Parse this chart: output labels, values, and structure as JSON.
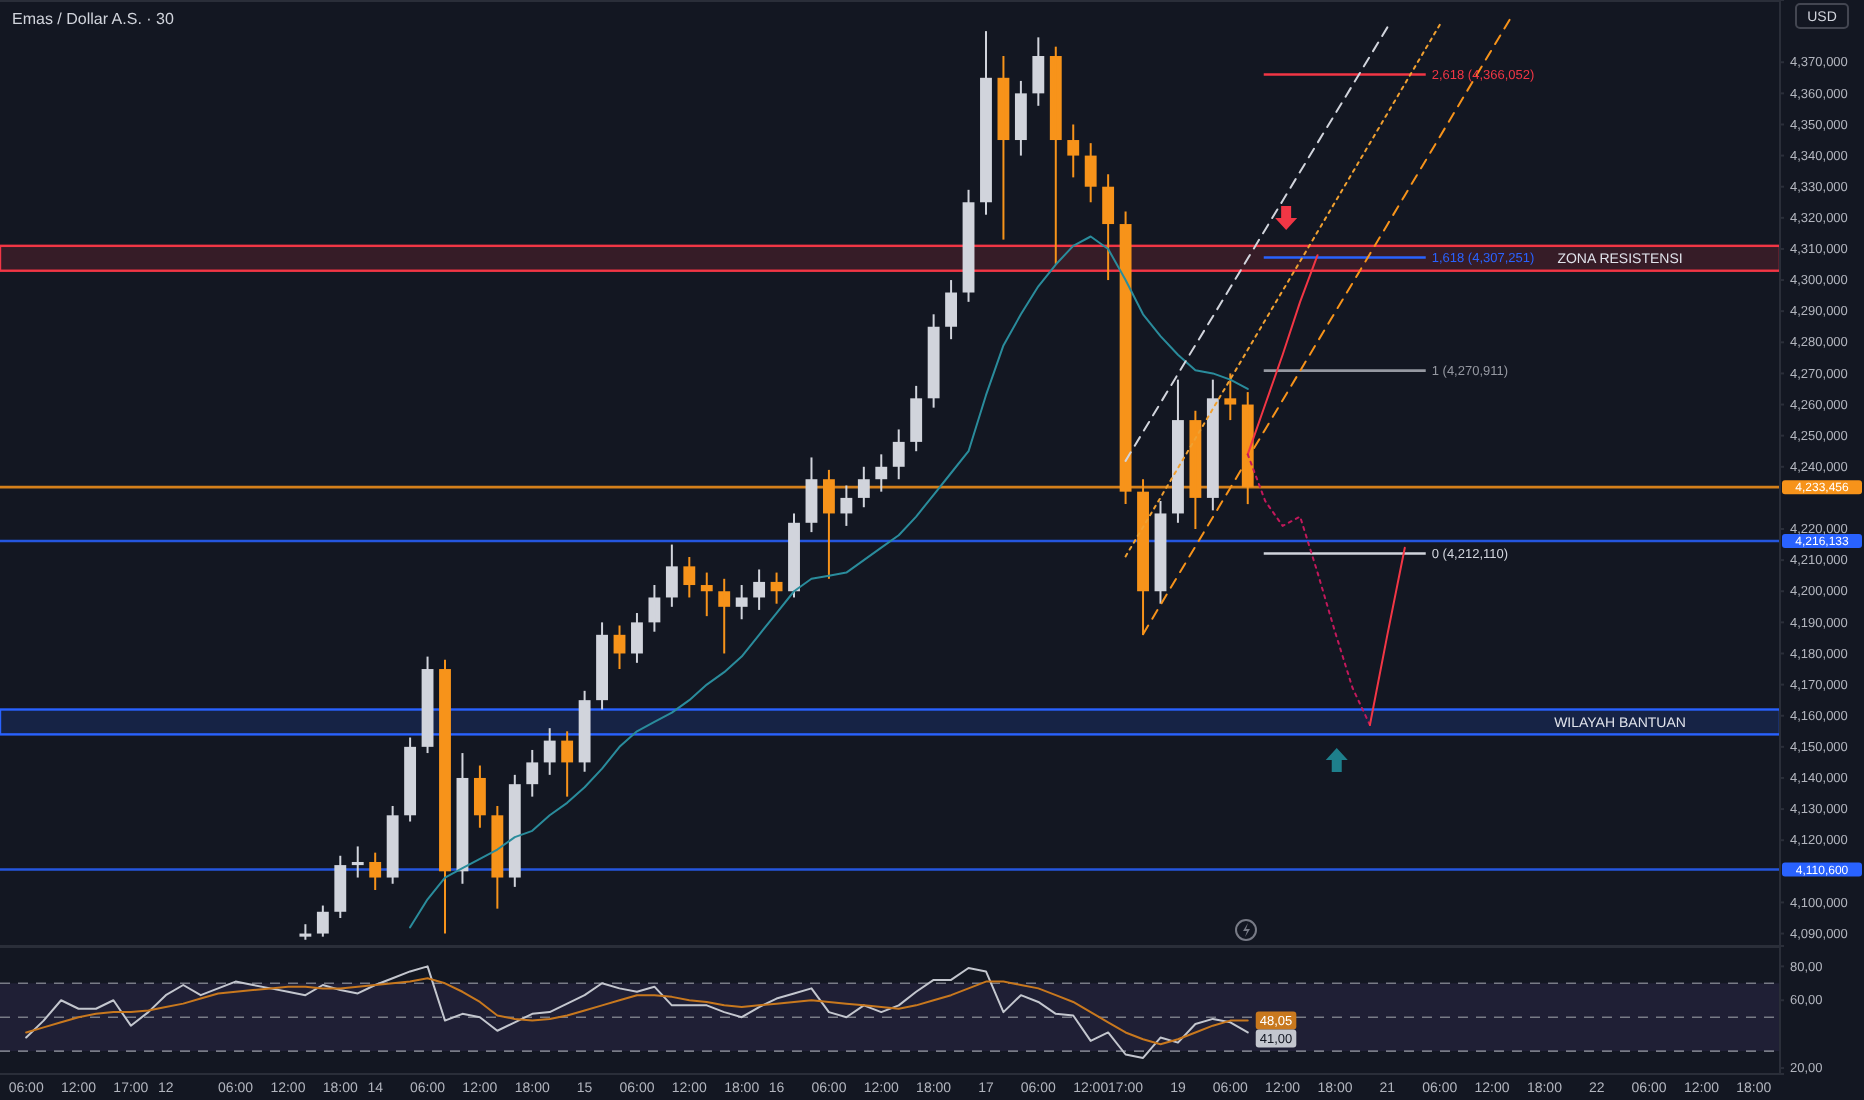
{
  "chart_data": [
    {
      "type": "candlestick",
      "title": "Emas / Dollar A.S. · 30",
      "ylabel": "USD",
      "ylim": [
        4086000,
        4390000
      ],
      "categories": [
        null,
        null,
        null,
        null,
        null,
        null,
        null,
        null,
        null,
        null,
        null,
        null,
        null,
        null,
        null,
        null,
        null,
        null,
        null,
        null,
        null,
        null,
        null,
        null,
        null,
        null,
        null,
        null,
        null,
        null,
        null,
        null,
        null,
        null,
        null,
        null,
        null,
        null,
        null,
        null,
        null,
        null,
        null,
        null,
        null,
        null,
        null,
        null,
        null,
        null,
        null,
        null,
        null,
        null,
        null,
        null,
        null,
        null,
        null,
        null,
        null,
        null,
        null,
        null,
        null,
        null,
        null,
        null,
        null,
        null,
        null,
        null,
        null,
        null,
        null,
        null,
        null,
        null,
        null,
        null,
        null,
        null,
        null,
        null,
        null,
        null,
        null,
        null,
        null,
        null,
        null,
        null,
        null,
        null,
        null,
        null,
        null,
        null,
        null,
        null,
        null,
        null
      ],
      "yticks": [
        {
          "value": 4090000,
          "label": "4,090,000"
        },
        {
          "value": 4100000,
          "label": "4,100,000"
        },
        {
          "value": 4120000,
          "label": "4,120,000"
        },
        {
          "value": 4130000,
          "label": "4,130,000"
        },
        {
          "value": 4140000,
          "label": "4,140,000"
        },
        {
          "value": 4150000,
          "label": "4,150,000"
        },
        {
          "value": 4160000,
          "label": "4,160,000"
        },
        {
          "value": 4170000,
          "label": "4,170,000"
        },
        {
          "value": 4180000,
          "label": "4,180,000"
        },
        {
          "value": 4190000,
          "label": "4,190,000"
        },
        {
          "value": 4200000,
          "label": "4,200,000"
        },
        {
          "value": 4210000,
          "label": "4,210,000"
        },
        {
          "value": 4220000,
          "label": "4,220,000"
        },
        {
          "value": 4240000,
          "label": "4,240,000"
        },
        {
          "value": 4250000,
          "label": "4,250,000"
        },
        {
          "value": 4260000,
          "label": "4,260,000"
        },
        {
          "value": 4270000,
          "label": "4,270,000"
        },
        {
          "value": 4280000,
          "label": "4,280,000"
        },
        {
          "value": 4290000,
          "label": "4,290,000"
        },
        {
          "value": 4300000,
          "label": "4,300,000"
        },
        {
          "value": 4310000,
          "label": "4,310,000"
        },
        {
          "value": 4320000,
          "label": "4,320,000"
        },
        {
          "value": 4330000,
          "label": "4,330,000"
        },
        {
          "value": 4340000,
          "label": "4,340,000"
        },
        {
          "value": 4350000,
          "label": "4,350,000"
        },
        {
          "value": 4360000,
          "label": "4,360,000"
        },
        {
          "value": 4370000,
          "label": "4,370,000"
        }
      ],
      "ohlc": [
        null,
        null,
        null,
        null,
        null,
        null,
        null,
        null,
        null,
        null,
        null,
        null,
        null,
        null,
        null,
        null,
        null,
        [
          4089000,
          4093000,
          4088000,
          4090000
        ],
        [
          4090000,
          4099000,
          4089000,
          4097000
        ],
        [
          4097000,
          4115000,
          4095000,
          4112000
        ],
        [
          4112000,
          4118000,
          4108000,
          4113000
        ],
        [
          4113000,
          4116000,
          4104000,
          4108000
        ],
        [
          4108000,
          4131000,
          4106000,
          4128000
        ],
        [
          4128000,
          4153000,
          4126000,
          4150000
        ],
        [
          4150000,
          4179000,
          4148000,
          4175000
        ],
        [
          4175000,
          4178000,
          4090000,
          4110000
        ],
        [
          4110000,
          4148000,
          4106000,
          4140000
        ],
        [
          4140000,
          4144000,
          4124000,
          4128000
        ],
        [
          4128000,
          4131000,
          4098000,
          4108000
        ],
        [
          4108000,
          4141000,
          4105000,
          4138000
        ],
        [
          4138000,
          4149000,
          4134000,
          4145000
        ],
        [
          4145000,
          4156000,
          4141000,
          4152000
        ],
        [
          4152000,
          4155000,
          4134000,
          4145000
        ],
        [
          4145000,
          4168000,
          4142000,
          4165000
        ],
        [
          4165000,
          4190000,
          4162000,
          4186000
        ],
        [
          4186000,
          4189000,
          4175000,
          4180000
        ],
        [
          4180000,
          4193000,
          4177000,
          4190000
        ],
        [
          4190000,
          4202000,
          4187000,
          4198000
        ],
        [
          4198000,
          4215000,
          4195000,
          4208000
        ],
        [
          4208000,
          4211000,
          4198000,
          4202000
        ],
        [
          4202000,
          4206000,
          4192000,
          4200000
        ],
        [
          4200000,
          4204000,
          4180000,
          4195000
        ],
        [
          4195000,
          4202000,
          4191000,
          4198000
        ],
        [
          4198000,
          4207000,
          4194000,
          4203000
        ],
        [
          4203000,
          4206000,
          4196000,
          4200000
        ],
        [
          4200000,
          4225000,
          4198000,
          4222000
        ],
        [
          4222000,
          4243000,
          4219000,
          4236000
        ],
        [
          4236000,
          4239000,
          4204000,
          4225000
        ],
        [
          4225000,
          4234000,
          4221000,
          4230000
        ],
        [
          4230000,
          4240000,
          4227000,
          4236000
        ],
        [
          4236000,
          4244000,
          4232000,
          4240000
        ],
        [
          4240000,
          4252000,
          4236000,
          4248000
        ],
        [
          4248000,
          4266000,
          4245000,
          4262000
        ],
        [
          4262000,
          4289000,
          4259000,
          4285000
        ],
        [
          4285000,
          4300000,
          4281000,
          4296000
        ],
        [
          4296000,
          4329000,
          4293000,
          4325000
        ],
        [
          4325000,
          4380000,
          4321000,
          4365000
        ],
        [
          4365000,
          4372000,
          4313000,
          4345000
        ],
        [
          4345000,
          4364000,
          4340000,
          4360000
        ],
        [
          4360000,
          4378000,
          4356000,
          4372000
        ],
        [
          4372000,
          4375000,
          4305000,
          4345000
        ],
        [
          4345000,
          4350000,
          4333000,
          4340000
        ],
        [
          4340000,
          4344000,
          4325000,
          4330000
        ],
        [
          4330000,
          4334000,
          4300000,
          4318000
        ],
        [
          4318000,
          4322000,
          4228000,
          4232000
        ],
        [
          4232000,
          4236000,
          4186000,
          4200000
        ],
        [
          4200000,
          4229000,
          4196000,
          4225000
        ],
        [
          4225000,
          4268000,
          4222000,
          4255000
        ],
        [
          4255000,
          4258000,
          4220000,
          4230000
        ],
        [
          4230000,
          4268000,
          4226000,
          4262000
        ],
        [
          4262000,
          4270000,
          4255000,
          4260000
        ],
        [
          4260000,
          4264000,
          4228000,
          4233456
        ],
        null,
        null,
        null,
        null,
        null,
        null,
        null,
        null,
        null,
        null,
        null,
        null,
        null,
        null,
        null,
        null,
        null,
        null,
        null,
        null,
        null,
        null,
        null,
        null,
        null,
        null,
        null,
        null,
        null,
        null
      ],
      "colors": [
        null,
        null,
        null,
        null,
        null,
        null,
        null,
        null,
        null,
        null,
        null,
        null,
        null,
        null,
        null,
        null,
        null,
        "#d1d4dc",
        "#d1d4dc",
        "#d1d4dc",
        "#d1d4dc",
        "#f7931a",
        "#d1d4dc",
        "#d1d4dc",
        "#d1d4dc",
        "#f7931a",
        "#d1d4dc",
        "#f7931a",
        "#f7931a",
        "#d1d4dc",
        "#d1d4dc",
        "#d1d4dc",
        "#f7931a",
        "#d1d4dc",
        "#d1d4dc",
        "#f7931a",
        "#d1d4dc",
        "#d1d4dc",
        "#d1d4dc",
        "#f7931a",
        "#f7931a",
        "#f7931a",
        "#d1d4dc",
        "#d1d4dc",
        "#f7931a",
        "#d1d4dc",
        "#d1d4dc",
        "#f7931a",
        "#d1d4dc",
        "#d1d4dc",
        "#d1d4dc",
        "#d1d4dc",
        "#d1d4dc",
        "#d1d4dc",
        "#d1d4dc",
        "#d1d4dc",
        "#d1d4dc",
        "#f7931a",
        "#d1d4dc",
        "#d1d4dc",
        "#f7931a",
        "#f7931a",
        "#f7931a",
        "#f7931a",
        "#f7931a",
        "#f7931a",
        "#d1d4dc",
        "#d1d4dc",
        "#f7931a",
        "#d1d4dc",
        "#f7931a",
        "#f7931a",
        null,
        null,
        null,
        null,
        null,
        null,
        null,
        null,
        null,
        null,
        null,
        null,
        null,
        null,
        null,
        null,
        null,
        null,
        null,
        null,
        null,
        null,
        null,
        null,
        null,
        null,
        null,
        null,
        null,
        null
      ],
      "series": [
        {
          "type": "line",
          "color": "#2a8c9c",
          "values": [
            null,
            null,
            null,
            null,
            null,
            null,
            null,
            null,
            null,
            null,
            null,
            null,
            null,
            null,
            null,
            null,
            null,
            null,
            null,
            null,
            null,
            null,
            null,
            4092000,
            4101000,
            4108000,
            4111000,
            4114000,
            4117000,
            4121000,
            4123000,
            4128000,
            4132000,
            4137000,
            4143000,
            4150000,
            4155000,
            4158000,
            4161000,
            4165000,
            4170000,
            4174000,
            4179000,
            4186000,
            4193000,
            4200000,
            4204000,
            4205000,
            4206000,
            4210000,
            4214000,
            4218000,
            4224000,
            4231000,
            4238000,
            4245000,
            4263000,
            4279000,
            4289000,
            4298000,
            4305000,
            4311000,
            4314000,
            4310000,
            4300000,
            4289000,
            4282000,
            4276000,
            4271000,
            4270000,
            4268000,
            4265000,
            null,
            null,
            null,
            null,
            null,
            null,
            null,
            null,
            null,
            null,
            null,
            null,
            null,
            null,
            null,
            null,
            null,
            null,
            null,
            null,
            null,
            null,
            null,
            null,
            null,
            null,
            null,
            null,
            null,
            null
          ]
        },
        {
          "type": "line",
          "color": "#d1d4dc",
          "line_style": "dashed",
          "values": [
            null,
            null,
            null,
            null,
            null,
            null,
            null,
            null,
            null,
            null,
            null,
            null,
            null,
            null,
            null,
            null,
            null,
            null,
            null,
            null,
            null,
            null,
            null,
            null,
            null,
            null,
            null,
            null,
            null,
            null,
            null,
            null,
            null,
            null,
            null,
            null,
            null,
            null,
            null,
            null,
            null,
            null,
            null,
            null,
            null,
            null,
            null,
            null,
            null,
            null,
            null,
            null,
            null,
            null,
            null,
            null,
            null,
            null,
            null,
            null,
            null,
            null,
            null,
            null,
            4241900,
            4251200,
            4260500,
            4269800,
            4279100,
            4288300,
            4297600,
            4306900,
            4316200,
            4325500,
            4334800,
            4344100,
            4353300,
            4362600,
            4371900,
            4381200,
            null,
            null,
            null,
            null,
            null,
            null,
            null,
            null,
            null,
            null,
            null,
            null,
            null,
            null,
            null,
            null,
            null,
            null,
            null,
            null,
            null,
            null
          ]
        },
        {
          "type": "line",
          "color": "#f0a030",
          "line_style": "dotted",
          "values": [
            null,
            null,
            null,
            null,
            null,
            null,
            null,
            null,
            null,
            null,
            null,
            null,
            null,
            null,
            null,
            null,
            null,
            null,
            null,
            null,
            null,
            null,
            null,
            null,
            null,
            null,
            null,
            null,
            null,
            null,
            null,
            null,
            null,
            null,
            null,
            null,
            null,
            null,
            null,
            null,
            null,
            null,
            null,
            null,
            null,
            null,
            null,
            null,
            null,
            null,
            null,
            null,
            null,
            null,
            null,
            null,
            null,
            null,
            null,
            null,
            null,
            null,
            null,
            null,
            4211200,
            4220600,
            4230100,
            4239600,
            4249100,
            4258600,
            4268100,
            4277600,
            4287100,
            4296600,
            4306000,
            4315500,
            4325000,
            4334500,
            4344000,
            4353500,
            4363000,
            4372500,
            4382000,
            null,
            null,
            null,
            null,
            null,
            null,
            null,
            null,
            null,
            null,
            null,
            null,
            null,
            null,
            null,
            null,
            null,
            null,
            null
          ]
        },
        {
          "type": "line",
          "color": "#f7931a",
          "line_style": "dashed",
          "values": [
            null,
            null,
            null,
            null,
            null,
            null,
            null,
            null,
            null,
            null,
            null,
            null,
            null,
            null,
            null,
            null,
            null,
            null,
            null,
            null,
            null,
            null,
            null,
            null,
            null,
            null,
            null,
            null,
            null,
            null,
            null,
            null,
            null,
            null,
            null,
            null,
            null,
            null,
            null,
            null,
            null,
            null,
            null,
            null,
            null,
            null,
            null,
            null,
            null,
            null,
            null,
            null,
            null,
            null,
            null,
            null,
            null,
            null,
            null,
            null,
            null,
            null,
            null,
            null,
            null,
            4186200,
            4195600,
            4205000,
            4214400,
            4223800,
            4233200,
            4242600,
            4252000,
            4261400,
            4270800,
            4280200,
            4289600,
            4299000,
            4308400,
            4317800,
            4327200,
            4336600,
            4346000,
            4355400,
            4364800,
            4374200,
            4383600,
            null,
            null,
            null,
            null,
            null,
            null,
            null,
            null,
            null,
            null,
            null,
            null,
            null,
            null,
            null
          ]
        },
        {
          "type": "line",
          "color": "#f23645",
          "line_style": "solid",
          "values": [
            null,
            null,
            null,
            null,
            null,
            null,
            null,
            null,
            null,
            null,
            null,
            null,
            null,
            null,
            null,
            null,
            null,
            null,
            null,
            null,
            null,
            null,
            null,
            null,
            null,
            null,
            null,
            null,
            null,
            null,
            null,
            null,
            null,
            null,
            null,
            null,
            null,
            null,
            null,
            null,
            null,
            null,
            null,
            null,
            null,
            null,
            null,
            null,
            null,
            null,
            null,
            null,
            null,
            null,
            null,
            null,
            null,
            null,
            null,
            null,
            null,
            null,
            null,
            null,
            null,
            null,
            null,
            null,
            null,
            null,
            null,
            4244000,
            4260000,
            4276000,
            4293000,
            4308000,
            null,
            null,
            null,
            null,
            null,
            null,
            null,
            null,
            null,
            null,
            null,
            null,
            null,
            null,
            null,
            null,
            null,
            null,
            null,
            null,
            null,
            null,
            null,
            null,
            null,
            null
          ]
        },
        {
          "type": "line",
          "color": "#c2185b",
          "line_style": "dotted",
          "values": [
            null,
            null,
            null,
            null,
            null,
            null,
            null,
            null,
            null,
            null,
            null,
            null,
            null,
            null,
            null,
            null,
            null,
            null,
            null,
            null,
            null,
            null,
            null,
            null,
            null,
            null,
            null,
            null,
            null,
            null,
            null,
            null,
            null,
            null,
            null,
            null,
            null,
            null,
            null,
            null,
            null,
            null,
            null,
            null,
            null,
            null,
            null,
            null,
            null,
            null,
            null,
            null,
            null,
            null,
            null,
            null,
            null,
            null,
            null,
            null,
            null,
            null,
            null,
            null,
            null,
            null,
            null,
            null,
            null,
            null,
            null,
            4244000,
            4229000,
            4221000,
            4224000,
            4206000,
            4187000,
            4169000,
            4157000,
            null,
            null,
            null,
            null,
            null,
            null,
            null,
            null,
            null,
            null,
            null,
            null,
            null,
            null,
            null,
            null,
            null,
            null,
            null,
            null,
            null,
            null,
            null
          ]
        },
        {
          "type": "line",
          "color": "#f23645",
          "line_style": "solid",
          "values": [
            null,
            null,
            null,
            null,
            null,
            null,
            null,
            null,
            null,
            null,
            null,
            null,
            null,
            null,
            null,
            null,
            null,
            null,
            null,
            null,
            null,
            null,
            null,
            null,
            null,
            null,
            null,
            null,
            null,
            null,
            null,
            null,
            null,
            null,
            null,
            null,
            null,
            null,
            null,
            null,
            null,
            null,
            null,
            null,
            null,
            null,
            null,
            null,
            null,
            null,
            null,
            null,
            null,
            null,
            null,
            null,
            null,
            null,
            null,
            null,
            null,
            null,
            null,
            null,
            null,
            null,
            null,
            null,
            null,
            null,
            null,
            null,
            null,
            null,
            null,
            null,
            null,
            null,
            4157000,
            4186000,
            4214000,
            null,
            null,
            null,
            null,
            null,
            null,
            null,
            null,
            null,
            null,
            null,
            null,
            null,
            null,
            null,
            null,
            null,
            null,
            null,
            null,
            null
          ]
        }
      ],
      "ref_lines": [
        {
          "axis": "y",
          "value": 4233456,
          "label": "4,233,456",
          "color": "#f7931a"
        },
        {
          "axis": "y",
          "value": 4216133,
          "label": "4,216,133",
          "color": "#2962ff"
        },
        {
          "axis": "y",
          "value": 4110600,
          "label": "4,110,600",
          "color": "#2962ff"
        },
        {
          "axis": "y",
          "value": 4366052,
          "label": "2,618 (4,366,052)",
          "color": "#f23645"
        },
        {
          "axis": "y",
          "value": 4307251,
          "label": "1,618 (4,307,251)",
          "color": "#2962ff"
        },
        {
          "axis": "y",
          "value": 4270911,
          "label": "1 (4,270,911)",
          "color": "#9598a1"
        },
        {
          "axis": "y",
          "value": 4212110,
          "label": "0 (4,212,110)",
          "color": "#d1d4dc"
        }
      ],
      "bands": [
        {
          "axis": "y",
          "from": 4303000,
          "to": 4311000,
          "label": "ZONA RESISTENSI",
          "color": "#f23645"
        },
        {
          "axis": "y",
          "from": 4154000,
          "to": 4162000,
          "label": "WILAYAH BANTUAN",
          "color": "#2962ff"
        }
      ]
    },
    {
      "type": "line",
      "ylim": [
        16.5,
        92
      ],
      "categories": [
        null,
        "06:00",
        null,
        null,
        "12:00",
        null,
        null,
        "17:00",
        null,
        "12",
        null,
        null,
        null,
        "06:00",
        null,
        null,
        "12:00",
        null,
        null,
        "18:00",
        null,
        "14",
        null,
        null,
        "06:00",
        null,
        null,
        "12:00",
        null,
        null,
        "18:00",
        null,
        null,
        "15",
        null,
        null,
        "06:00",
        null,
        null,
        "12:00",
        null,
        null,
        "18:00",
        null,
        "16",
        null,
        null,
        "06:00",
        null,
        null,
        "12:00",
        null,
        null,
        "18:00",
        null,
        null,
        "17",
        null,
        null,
        "06:00",
        null,
        null,
        "12:00",
        null,
        "17:00",
        null,
        null,
        "19",
        null,
        null,
        "06:00",
        null,
        null,
        "12:00",
        null,
        null,
        "18:00",
        null,
        null,
        "21",
        null,
        null,
        "06:00",
        null,
        null,
        "12:00",
        null,
        null,
        "18:00",
        null,
        null,
        "22",
        null,
        null,
        "06:00",
        null,
        null,
        "12:00",
        null,
        null,
        "18:00",
        null
      ],
      "yticks": [
        {
          "value": 20,
          "label": "20,00"
        },
        {
          "value": 60,
          "label": "60,00"
        },
        {
          "value": 80,
          "label": "80,00"
        }
      ],
      "series": [
        {
          "color": "#c3c6ce",
          "values": [
            null,
            38,
            48,
            60,
            55,
            55,
            60,
            45,
            53,
            63,
            69,
            63,
            67,
            71,
            69,
            67,
            65,
            63,
            69,
            66,
            64,
            69,
            73,
            77,
            80,
            48,
            52,
            50,
            42,
            47,
            52,
            53,
            58,
            63,
            70,
            67,
            65,
            68,
            57,
            57,
            57,
            53,
            50,
            56,
            61,
            64,
            67,
            53,
            50,
            57,
            53,
            57,
            65,
            72,
            72,
            79,
            77,
            53,
            63,
            59,
            52,
            51,
            36,
            41,
            28,
            26,
            38,
            35,
            46,
            49,
            47,
            41,
            null,
            null,
            null,
            null,
            null,
            null,
            null,
            null,
            null,
            null,
            null,
            null,
            null,
            null,
            null,
            null,
            null,
            null,
            null,
            null,
            null,
            null,
            null,
            null,
            null,
            null,
            null,
            null,
            null,
            null
          ],
          "value_labels": [
            null,
            null,
            null,
            null,
            null,
            null,
            null,
            null,
            null,
            null,
            null,
            null,
            null,
            null,
            null,
            null,
            null,
            null,
            null,
            null,
            null,
            null,
            null,
            null,
            null,
            null,
            null,
            null,
            null,
            null,
            null,
            null,
            null,
            null,
            null,
            null,
            null,
            null,
            null,
            null,
            null,
            null,
            null,
            null,
            null,
            null,
            null,
            null,
            null,
            null,
            null,
            null,
            null,
            null,
            null,
            null,
            null,
            null,
            null,
            null,
            null,
            null,
            null,
            null,
            null,
            null,
            null,
            null,
            null,
            null,
            null,
            "41,00",
            null,
            null,
            null,
            null,
            null,
            null,
            null,
            null,
            null,
            null,
            null,
            null,
            null,
            null,
            null,
            null,
            null,
            null,
            null,
            null,
            null,
            null,
            null,
            null,
            null,
            null,
            null,
            null,
            null,
            null
          ]
        },
        {
          "color": "#c8781e",
          "values": [
            null,
            41,
            44,
            47,
            50,
            52,
            53,
            53,
            54,
            56,
            58,
            61,
            64,
            65,
            66,
            67,
            68,
            68,
            67,
            67,
            68,
            69,
            70,
            71,
            73,
            70,
            65,
            59,
            51,
            49,
            48,
            49,
            51,
            54,
            57,
            60,
            63,
            63,
            62,
            60,
            59,
            57,
            56,
            57,
            58,
            59,
            60,
            59,
            58,
            57,
            56,
            55,
            57,
            60,
            63,
            67,
            71,
            71,
            69,
            67,
            63,
            59,
            53,
            47,
            41,
            37,
            34,
            37,
            41,
            45,
            48,
            48.05,
            null,
            null,
            null,
            null,
            null,
            null,
            null,
            null,
            null,
            null,
            null,
            null,
            null,
            null,
            null,
            null,
            null,
            null,
            null,
            null,
            null,
            null,
            null,
            null,
            null,
            null,
            null,
            null,
            null,
            null
          ],
          "value_labels": [
            null,
            null,
            null,
            null,
            null,
            null,
            null,
            null,
            null,
            null,
            null,
            null,
            null,
            null,
            null,
            null,
            null,
            null,
            null,
            null,
            null,
            null,
            null,
            null,
            null,
            null,
            null,
            null,
            null,
            null,
            null,
            null,
            null,
            null,
            null,
            null,
            null,
            null,
            null,
            null,
            null,
            null,
            null,
            null,
            null,
            null,
            null,
            null,
            null,
            null,
            null,
            null,
            null,
            null,
            null,
            null,
            null,
            null,
            null,
            null,
            null,
            null,
            null,
            null,
            null,
            null,
            null,
            null,
            null,
            null,
            null,
            "48,05",
            null,
            null,
            null,
            null,
            null,
            null,
            null,
            null,
            null,
            null,
            null,
            null,
            null,
            null,
            null,
            null,
            null,
            null,
            null,
            null,
            null,
            null,
            null,
            null,
            null,
            null,
            null,
            null,
            null,
            null
          ]
        }
      ],
      "ref_lines": [
        {
          "axis": "y",
          "value": 70,
          "color": "#787b86",
          "line_style": "dashed"
        },
        {
          "axis": "y",
          "value": 50,
          "color": "#787b86",
          "line_style": "dashed"
        },
        {
          "axis": "y",
          "value": 30,
          "color": "#787b86",
          "line_style": "dashed"
        }
      ],
      "bands": [
        {
          "axis": "y",
          "from": 30,
          "to": 70,
          "color": "#7e57c2"
        }
      ]
    }
  ]
}
